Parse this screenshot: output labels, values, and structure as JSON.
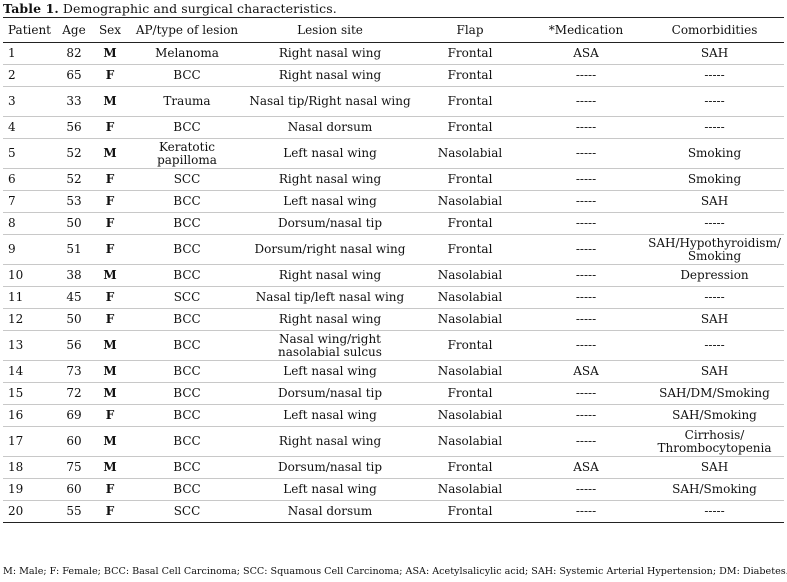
{
  "caption": {
    "label": "Table 1.",
    "text": " Demographic and surgical characteristics."
  },
  "headers": [
    "Patient",
    "Age",
    "Sex",
    "AP/type of lesion",
    "Lesion site",
    "Flap",
    "*Medication",
    "Comorbidities"
  ],
  "rows": [
    [
      "1",
      "82",
      "M",
      "Melanoma",
      "Right nasal wing",
      "Frontal",
      "ASA",
      "SAH"
    ],
    [
      "2",
      "65",
      "F",
      "BCC",
      "Right nasal wing",
      "Frontal",
      "-----",
      "-----"
    ],
    [
      "3",
      "33",
      "M",
      "Trauma",
      "Nasal tip/Right nasal wing",
      "Frontal",
      "-----",
      "-----"
    ],
    [
      "4",
      "56",
      "F",
      "BCC",
      "Nasal dorsum",
      "Frontal",
      "-----",
      "-----"
    ],
    [
      "5",
      "52",
      "M",
      "Keratotic papilloma",
      "Left nasal wing",
      "Nasolabial",
      "-----",
      "Smoking"
    ],
    [
      "6",
      "52",
      "F",
      "SCC",
      "Right nasal wing",
      "Frontal",
      "-----",
      "Smoking"
    ],
    [
      "7",
      "53",
      "F",
      "BCC",
      "Left nasal wing",
      "Nasolabial",
      "-----",
      "SAH"
    ],
    [
      "8",
      "50",
      "F",
      "BCC",
      "Dorsum/nasal tip",
      "Frontal",
      "-----",
      "-----"
    ],
    [
      "9",
      "51",
      "F",
      "BCC",
      "Dorsum/right nasal wing",
      "Frontal",
      "-----",
      "SAH/Hypothyroidism/ Smoking"
    ],
    [
      "10",
      "38",
      "M",
      "BCC",
      "Right nasal wing",
      "Nasolabial",
      "-----",
      "Depression"
    ],
    [
      "11",
      "45",
      "F",
      "SCC",
      "Nasal tip/left nasal wing",
      "Nasolabial",
      "-----",
      "-----"
    ],
    [
      "12",
      "50",
      "F",
      "BCC",
      "Right nasal wing",
      "Nasolabial",
      "-----",
      "SAH"
    ],
    [
      "13",
      "56",
      "M",
      "BCC",
      "Nasal wing/right nasolabial sulcus",
      "Frontal",
      "-----",
      "-----"
    ],
    [
      "14",
      "73",
      "M",
      "BCC",
      "Left nasal wing",
      "Nasolabial",
      "ASA",
      "SAH"
    ],
    [
      "15",
      "72",
      "M",
      "BCC",
      "Dorsum/nasal tip",
      "Frontal",
      "-----",
      "SAH/DM/Smoking"
    ],
    [
      "16",
      "69",
      "F",
      "BCC",
      "Left nasal wing",
      "Nasolabial",
      "-----",
      "SAH/Smoking"
    ],
    [
      "17",
      "60",
      "M",
      "BCC",
      "Right nasal wing",
      "Nasolabial",
      "-----",
      "Cirrhosis/ Thrombocytopenia"
    ],
    [
      "18",
      "75",
      "M",
      "BCC",
      "Dorsum/nasal tip",
      "Frontal",
      "ASA",
      "SAH"
    ],
    [
      "19",
      "60",
      "F",
      "BCC",
      "Left nasal wing",
      "Nasolabial",
      "-----",
      "SAH/Smoking"
    ],
    [
      "20",
      "55",
      "F",
      "SCC",
      "Nasal dorsum",
      "Frontal",
      "-----",
      "-----"
    ]
  ],
  "footnote": "M: Male; F: Female; BCC: Basal Cell Carcinoma; SCC: Squamous Cell Carcinoma; ASA: Acetylsalicylic acid; SAH: Systemic Arterial Hypertension; DM: Diabetes."
}
